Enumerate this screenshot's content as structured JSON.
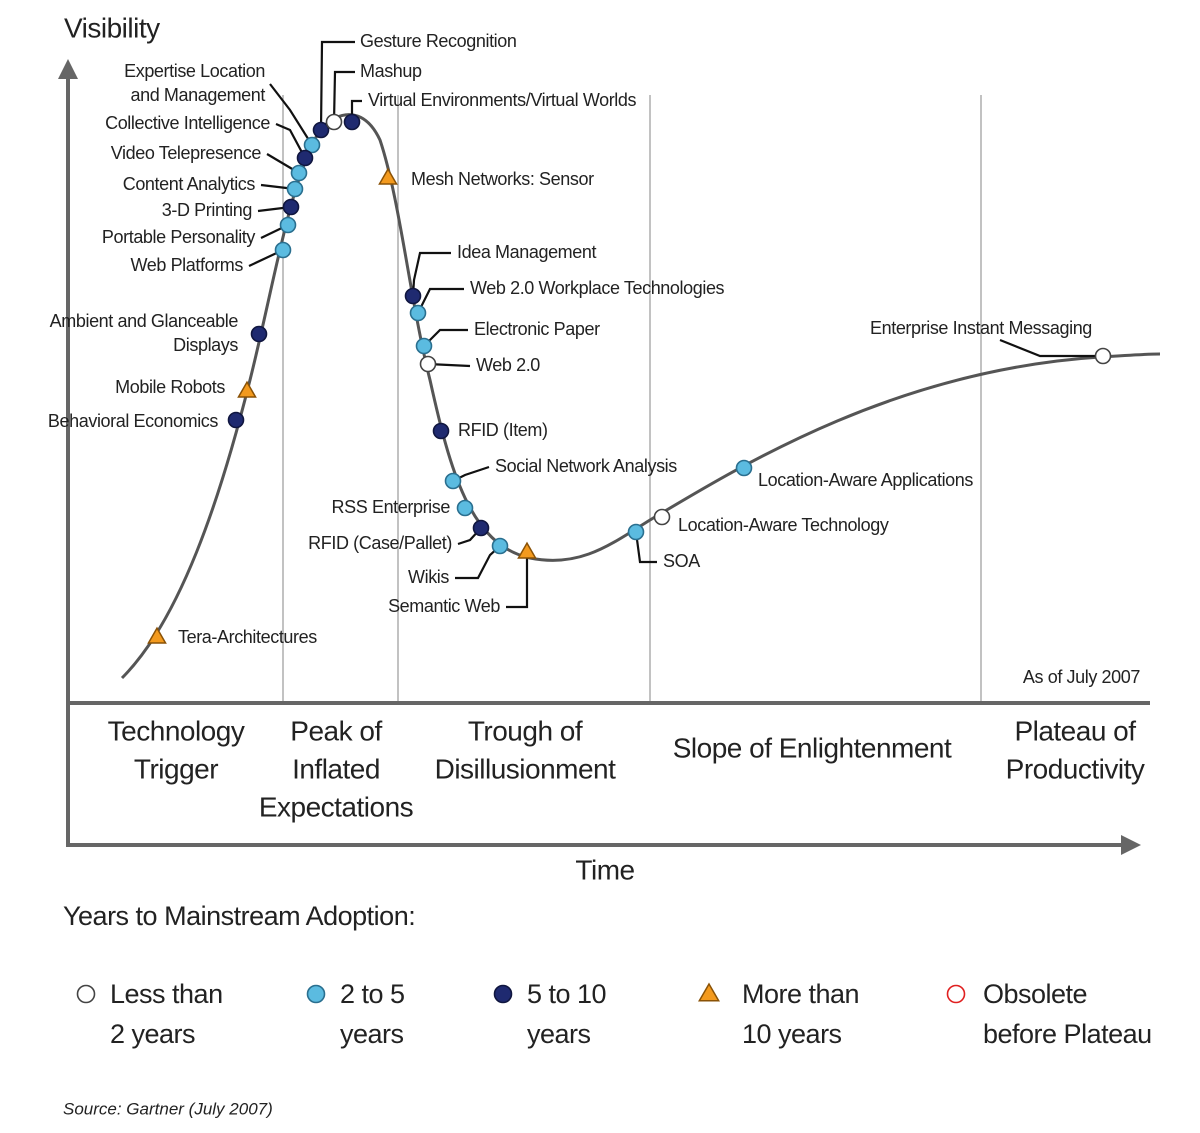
{
  "axes": {
    "y_label": "Visibility",
    "x_label": "Time"
  },
  "phases": [
    [
      "Technology",
      "Trigger"
    ],
    [
      "Peak of",
      "Inflated",
      "Expectations"
    ],
    [
      "Trough of",
      "Disillusionment"
    ],
    [
      "Slope of Enlightenment"
    ],
    [
      "Plateau of",
      "Productivity"
    ]
  ],
  "note": "As of July 2007",
  "technologies": [
    {
      "label": "Gesture Recognition",
      "adoption": 2
    },
    {
      "label": "Mashup",
      "adoption": 0
    },
    {
      "label": "Virtual Environments/Virtual Worlds",
      "adoption": 2
    },
    {
      "label": [
        "Expertise Location",
        "and Management"
      ],
      "adoption": 1
    },
    {
      "label": "Collective Intelligence",
      "adoption": 2
    },
    {
      "label": "Video Telepresence",
      "adoption": 1
    },
    {
      "label": "Content Analytics",
      "adoption": 1
    },
    {
      "label": "3-D Printing",
      "adoption": 2
    },
    {
      "label": "Portable Personality",
      "adoption": 1
    },
    {
      "label": "Web Platforms",
      "adoption": 1
    },
    {
      "label": [
        "Ambient and Glanceable",
        "Displays"
      ],
      "adoption": 2
    },
    {
      "label": "Mobile Robots",
      "adoption": 3
    },
    {
      "label": "Behavioral Economics",
      "adoption": 2
    },
    {
      "label": "Tera-Architectures",
      "adoption": 3
    },
    {
      "label": "Mesh Networks: Sensor",
      "adoption": 3
    },
    {
      "label": "Idea Management",
      "adoption": 2
    },
    {
      "label": "Web 2.0 Workplace Technologies",
      "adoption": 1
    },
    {
      "label": "Electronic Paper",
      "adoption": 1
    },
    {
      "label": "Web 2.0",
      "adoption": 0
    },
    {
      "label": "RFID (Item)",
      "adoption": 2
    },
    {
      "label": "Social Network Analysis",
      "adoption": 1
    },
    {
      "label": "RSS Enterprise",
      "adoption": 1
    },
    {
      "label": "RFID (Case/Pallet)",
      "adoption": 2
    },
    {
      "label": "Wikis",
      "adoption": 1
    },
    {
      "label": "Semantic Web",
      "adoption": 3
    },
    {
      "label": "SOA",
      "adoption": 1
    },
    {
      "label": "Location-Aware Technology",
      "adoption": 0
    },
    {
      "label": "Location-Aware Applications",
      "adoption": 1
    },
    {
      "label": "Enterprise Instant Messaging",
      "adoption": 0
    }
  ],
  "legend": {
    "title": "Years to Mainstream Adoption:",
    "items": [
      {
        "label": [
          "Less than",
          "2 years"
        ],
        "marker": "circle",
        "fill": "#ffffff",
        "stroke": "#444444"
      },
      {
        "label": [
          "2 to 5",
          "years"
        ],
        "marker": "circle",
        "fill": "#5bbbe0",
        "stroke": "#2a6f8f"
      },
      {
        "label": [
          "5 to 10",
          "years"
        ],
        "marker": "circle",
        "fill": "#1f2a70",
        "stroke": "#10163f"
      },
      {
        "label": [
          "More than",
          "10 years"
        ],
        "marker": "triangle",
        "fill": "#f39a1e",
        "stroke": "#8a5206"
      },
      {
        "label": [
          "Obsolete",
          "before Plateau"
        ],
        "marker": "circle",
        "fill": "#ffffff",
        "stroke": "#e02020"
      }
    ]
  },
  "source": "Source: Gartner (July 2007)"
}
